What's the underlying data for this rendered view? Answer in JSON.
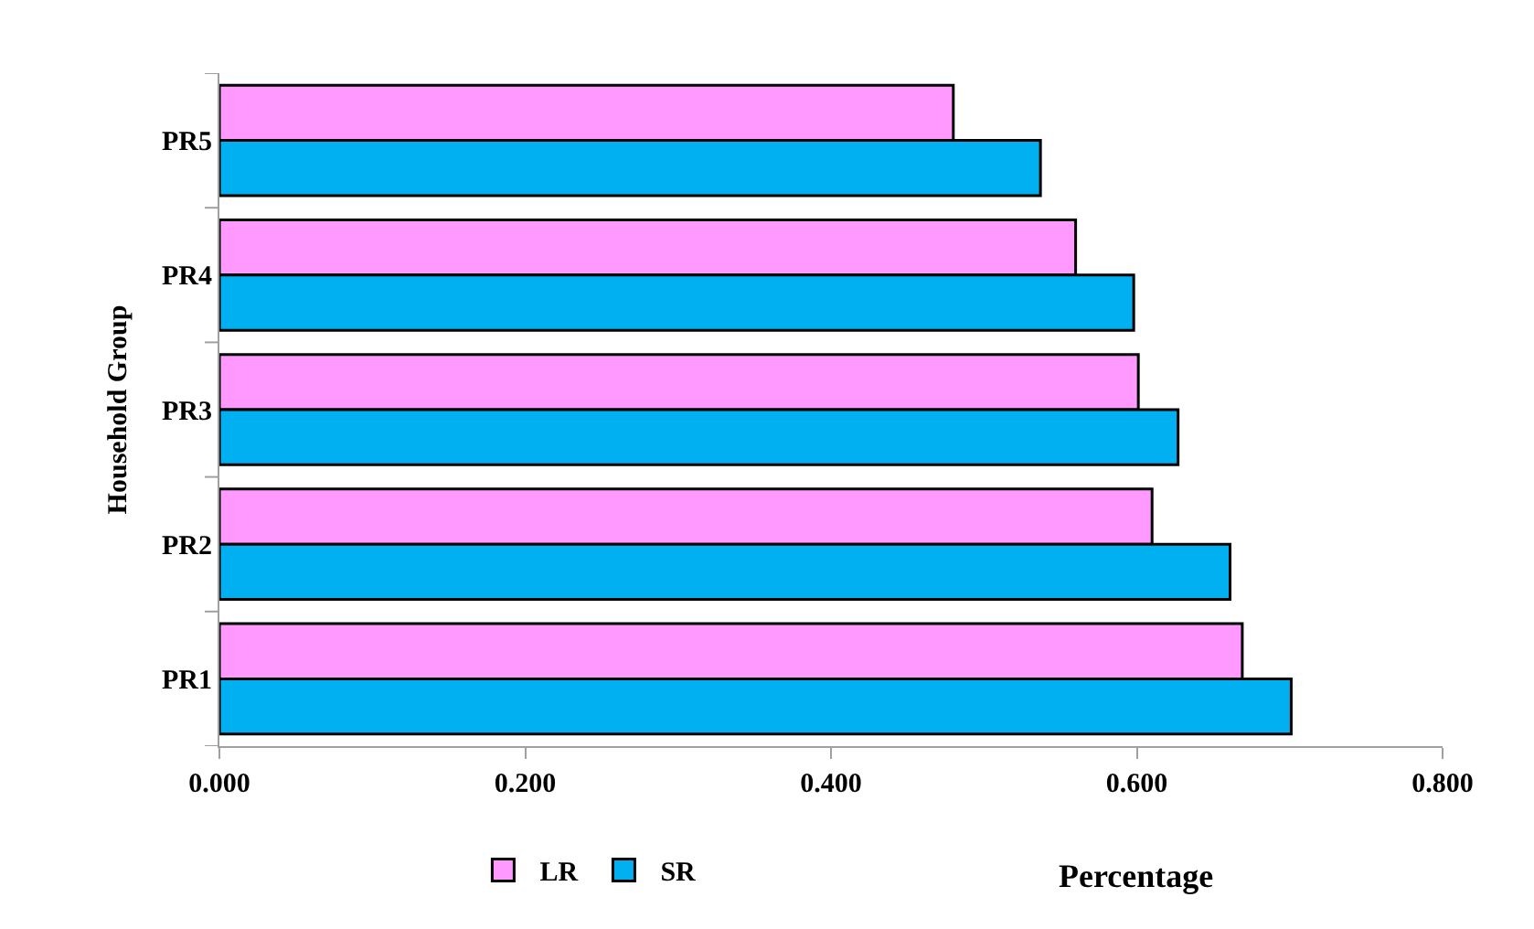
{
  "chart_data": {
    "type": "bar",
    "orientation": "horizontal",
    "xlabel": "Percentage",
    "ylabel": "Household Group",
    "categories": [
      "PR5",
      "PR4",
      "PR3",
      "PR2",
      "PR1"
    ],
    "series": [
      {
        "name": "LR",
        "color": "#ff99ff",
        "values": [
          0.48,
          0.56,
          0.601,
          0.61,
          0.669
        ]
      },
      {
        "name": "SR",
        "color": "#00b0f0",
        "values": [
          0.537,
          0.598,
          0.627,
          0.661,
          0.701
        ]
      }
    ],
    "xlim": [
      0,
      0.8
    ],
    "xticks": [
      {
        "value": 0,
        "label": "0.000"
      },
      {
        "value": 0.2,
        "label": "0.200"
      },
      {
        "value": 0.4,
        "label": "0.400"
      },
      {
        "value": 0.6,
        "label": "0.600"
      },
      {
        "value": 0.8,
        "label": "0.800"
      }
    ],
    "legend": "bottom"
  }
}
